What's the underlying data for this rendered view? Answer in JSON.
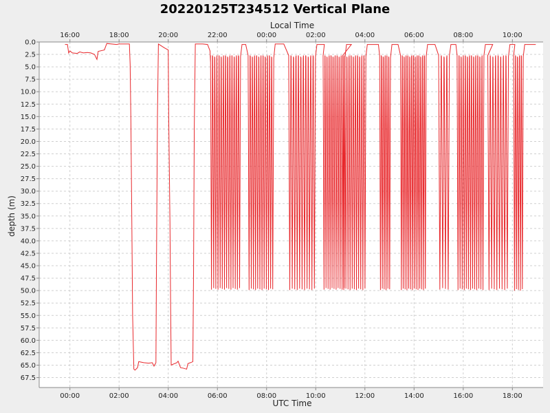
{
  "chart_data": {
    "type": "line",
    "title": "20220125T234512 Vertical Plane",
    "xlabel": "UTC Time",
    "x2label": "Local Time",
    "ylabel": "depth (m)",
    "x_unit": "hours since 00:00 UTC",
    "xlim": [
      -1.25,
      19.25
    ],
    "ylim": [
      0,
      69.5
    ],
    "y_inverted": true,
    "grid": true,
    "line_color": "#e8272b",
    "x_ticks": [
      {
        "value": 0,
        "label": "00:00"
      },
      {
        "value": 2,
        "label": "02:00"
      },
      {
        "value": 4,
        "label": "04:00"
      },
      {
        "value": 6,
        "label": "06:00"
      },
      {
        "value": 8,
        "label": "08:00"
      },
      {
        "value": 10,
        "label": "10:00"
      },
      {
        "value": 12,
        "label": "12:00"
      },
      {
        "value": 14,
        "label": "14:00"
      },
      {
        "value": 16,
        "label": "16:00"
      },
      {
        "value": 18,
        "label": "18:00"
      }
    ],
    "x2_ticks": [
      {
        "value": 0,
        "label": "16:00"
      },
      {
        "value": 2,
        "label": "18:00"
      },
      {
        "value": 4,
        "label": "20:00"
      },
      {
        "value": 6,
        "label": "22:00"
      },
      {
        "value": 8,
        "label": "00:00"
      },
      {
        "value": 10,
        "label": "02:00"
      },
      {
        "value": 12,
        "label": "04:00"
      },
      {
        "value": 14,
        "label": "06:00"
      },
      {
        "value": 16,
        "label": "08:00"
      },
      {
        "value": 18,
        "label": "10:00"
      }
    ],
    "y_ticks": [
      {
        "value": 0,
        "label": "0.0"
      },
      {
        "value": 2.5,
        "label": "2.5"
      },
      {
        "value": 5,
        "label": "5.0"
      },
      {
        "value": 7.5,
        "label": "7.5"
      },
      {
        "value": 10,
        "label": "10.0"
      },
      {
        "value": 12.5,
        "label": "12.5"
      },
      {
        "value": 15,
        "label": "15.0"
      },
      {
        "value": 17.5,
        "label": "17.5"
      },
      {
        "value": 20,
        "label": "20.0"
      },
      {
        "value": 22.5,
        "label": "22.5"
      },
      {
        "value": 25,
        "label": "25.0"
      },
      {
        "value": 27.5,
        "label": "27.5"
      },
      {
        "value": 30,
        "label": "30.0"
      },
      {
        "value": 32.5,
        "label": "32.5"
      },
      {
        "value": 35,
        "label": "35.0"
      },
      {
        "value": 37.5,
        "label": "37.5"
      },
      {
        "value": 40,
        "label": "40.0"
      },
      {
        "value": 42.5,
        "label": "42.5"
      },
      {
        "value": 45,
        "label": "45.0"
      },
      {
        "value": 47.5,
        "label": "47.5"
      },
      {
        "value": 50,
        "label": "50.0"
      },
      {
        "value": 52.5,
        "label": "52.5"
      },
      {
        "value": 55,
        "label": "55.0"
      },
      {
        "value": 57.5,
        "label": "57.5"
      },
      {
        "value": 60,
        "label": "60.0"
      },
      {
        "value": 62.5,
        "label": "62.5"
      },
      {
        "value": 65,
        "label": "65.0"
      },
      {
        "value": 67.5,
        "label": "67.5"
      }
    ],
    "series": [
      {
        "points": [
          [
            -0.2,
            0.5
          ],
          [
            -0.1,
            0.5
          ],
          [
            -0.05,
            2.2
          ],
          [
            0.0,
            1.8
          ],
          [
            0.1,
            2.2
          ],
          [
            0.3,
            2.3
          ],
          [
            0.4,
            2.0
          ],
          [
            0.55,
            2.2
          ],
          [
            0.7,
            2.1
          ],
          [
            0.85,
            2.2
          ],
          [
            1.0,
            2.5
          ],
          [
            1.1,
            3.5
          ],
          [
            1.15,
            1.9
          ],
          [
            1.4,
            1.6
          ],
          [
            1.5,
            0.3
          ],
          [
            1.9,
            0.5
          ],
          [
            2.0,
            0.4
          ],
          [
            2.3,
            0.4
          ],
          [
            2.42,
            0.4
          ],
          [
            2.45,
            4.5
          ],
          [
            2.48,
            16
          ],
          [
            2.52,
            37
          ],
          [
            2.55,
            55
          ],
          [
            2.6,
            65.8
          ],
          [
            2.65,
            66
          ],
          [
            2.75,
            65.5
          ],
          [
            2.8,
            64.3
          ],
          [
            3.0,
            64.5
          ],
          [
            3.2,
            64.6
          ],
          [
            3.35,
            64.5
          ],
          [
            3.42,
            65.2
          ],
          [
            3.5,
            64.5
          ],
          [
            3.52,
            45
          ],
          [
            3.56,
            15
          ],
          [
            3.6,
            0.4
          ],
          [
            3.85,
            1.2
          ],
          [
            4.0,
            1.6
          ],
          [
            4.02,
            15
          ],
          [
            4.07,
            36
          ],
          [
            4.1,
            55
          ],
          [
            4.12,
            65
          ],
          [
            4.2,
            64.8
          ],
          [
            4.35,
            64.5
          ],
          [
            4.4,
            64.2
          ],
          [
            4.5,
            65.5
          ],
          [
            4.6,
            65.6
          ],
          [
            4.75,
            65.8
          ],
          [
            4.8,
            64.7
          ],
          [
            4.9,
            64.5
          ],
          [
            5.0,
            64.3
          ],
          [
            5.03,
            47
          ],
          [
            5.06,
            17
          ],
          [
            5.1,
            0.4
          ],
          [
            5.4,
            0.4
          ],
          [
            5.6,
            0.5
          ],
          [
            5.7,
            1.8
          ],
          [
            5.72,
            4
          ]
        ]
      }
    ],
    "dive_bursts": [
      {
        "x_start": 5.72,
        "x_end": 6.95,
        "count": 14,
        "top": 2.7,
        "bottom": 49.8
      },
      {
        "x_start": 7.0,
        "x_end": 7.15,
        "count": 1,
        "top": 0.5,
        "bottom": 0.5
      },
      {
        "x_start": 7.25,
        "x_end": 8.3,
        "count": 12,
        "top": 2.7,
        "bottom": 49.9
      },
      {
        "x_start": 8.35,
        "x_end": 8.7,
        "count": 1,
        "top": 0.4,
        "bottom": 0.4
      },
      {
        "x_start": 8.9,
        "x_end": 10.0,
        "count": 11,
        "top": 2.7,
        "bottom": 49.9
      },
      {
        "x_start": 10.05,
        "x_end": 10.35,
        "count": 1,
        "top": 0.5,
        "bottom": 0.5
      },
      {
        "x_start": 10.3,
        "x_end": 11.2,
        "count": 11,
        "top": 2.7,
        "bottom": 49.8
      },
      {
        "x_start": 11.25,
        "x_end": 11.45,
        "count": 1,
        "top": 0.5,
        "bottom": 0.5
      },
      {
        "x_start": 11.1,
        "x_end": 12.05,
        "count": 11,
        "top": 2.7,
        "bottom": 49.9
      },
      {
        "x_start": 12.1,
        "x_end": 12.55,
        "count": 1,
        "top": 0.5,
        "bottom": 0.5
      },
      {
        "x_start": 12.6,
        "x_end": 13.05,
        "count": 6,
        "top": 2.7,
        "bottom": 49.9
      },
      {
        "x_start": 13.1,
        "x_end": 13.35,
        "count": 1,
        "top": 0.5,
        "bottom": 0.5
      },
      {
        "x_start": 13.45,
        "x_end": 14.5,
        "count": 14,
        "top": 2.7,
        "bottom": 49.9
      },
      {
        "x_start": 14.55,
        "x_end": 14.85,
        "count": 1,
        "top": 0.5,
        "bottom": 0.5
      },
      {
        "x_start": 15.0,
        "x_end": 15.45,
        "count": 4,
        "top": 2.7,
        "bottom": 49.8
      },
      {
        "x_start": 15.5,
        "x_end": 15.7,
        "count": 1,
        "top": 0.5,
        "bottom": 0.5
      },
      {
        "x_start": 15.75,
        "x_end": 16.85,
        "count": 13,
        "top": 2.7,
        "bottom": 49.9
      },
      {
        "x_start": 16.9,
        "x_end": 17.2,
        "count": 1,
        "top": 0.5,
        "bottom": 0.5
      },
      {
        "x_start": 17.0,
        "x_end": 17.85,
        "count": 8,
        "top": 2.7,
        "bottom": 49.9
      },
      {
        "x_start": 17.9,
        "x_end": 18.1,
        "count": 1,
        "top": 0.5,
        "bottom": 0.5
      },
      {
        "x_start": 18.05,
        "x_end": 18.45,
        "count": 5,
        "top": 2.7,
        "bottom": 50.0
      },
      {
        "x_start": 18.5,
        "x_end": 18.95,
        "count": 1,
        "top": 0.5,
        "bottom": 0.5
      }
    ]
  }
}
